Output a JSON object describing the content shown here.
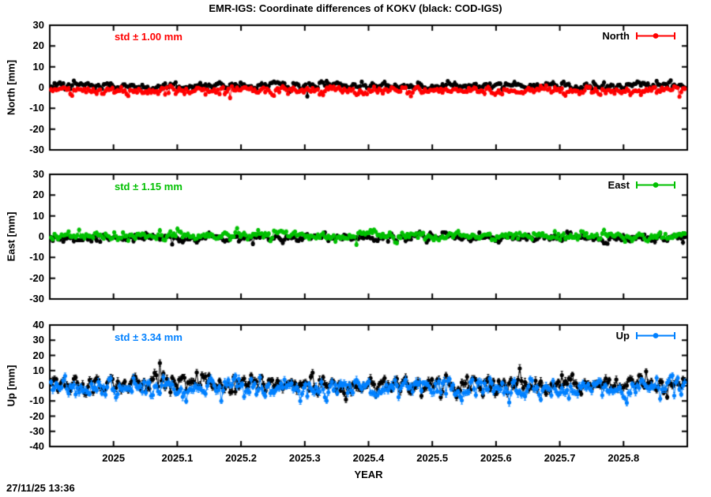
{
  "title": "EMR-IGS: Coordinate differences of KOKV (black: COD-IGS)",
  "xlabel": "YEAR",
  "timestamp": "27/11/25 13:36",
  "palette": {
    "background": "#ffffff",
    "frame": "#000000",
    "black_series": "#000000",
    "north_red": "#ff0000",
    "east_green": "#00c000",
    "up_blue": "#0080ff"
  },
  "x_axis": {
    "lim": [
      2024.9,
      2025.9
    ],
    "tick_values": [
      2025,
      2025.1,
      2025.2,
      2025.3,
      2025.4,
      2025.5,
      2025.6,
      2025.7,
      2025.8
    ],
    "tick_labels": [
      "2025",
      "2025.1",
      "2025.2",
      "2025.3",
      "2025.4",
      "2025.5",
      "2025.6",
      "2025.7",
      "2025.8"
    ]
  },
  "t_range": [
    2024.902,
    2025.896
  ],
  "points_per_series": 362,
  "chart_data": [
    {
      "type": "scatter",
      "id": "north",
      "ylabel": "North [mm]",
      "ylim": [
        -30,
        30
      ],
      "ytick_values": [
        30,
        20,
        10,
        0,
        -10,
        -20,
        -30
      ],
      "ytick_labels": [
        "30",
        "20",
        "10",
        "0",
        "-10",
        "-20",
        "-30"
      ],
      "std_label": "std ± 1.00 mm",
      "legend_label": "North",
      "accent": "#ff0000",
      "series": [
        {
          "name": "COD-IGS",
          "color": "#000000",
          "mean_mm": 1.0,
          "std_mm": 1.0,
          "errorbar_mm": 0.8,
          "seed": 101,
          "outliers": [
            {
              "t": 2025.305,
              "v": -4.2
            }
          ]
        },
        {
          "name": "EMR-IGS",
          "color": "#ff0000",
          "mean_mm": -1.4,
          "std_mm": 1.0,
          "errorbar_mm": 0.8,
          "seed": 102,
          "outliers": [
            {
              "t": 2025.182,
              "v": -4.9
            }
          ]
        }
      ]
    },
    {
      "type": "scatter",
      "id": "east",
      "ylabel": "East [mm]",
      "ylim": [
        -30,
        30
      ],
      "ytick_values": [
        30,
        20,
        10,
        0,
        -10,
        -20,
        -30
      ],
      "ytick_labels": [
        "30",
        "20",
        "10",
        "0",
        "-10",
        "-20",
        "-30"
      ],
      "std_label": "std ± 1.15 mm",
      "legend_label": "East",
      "accent": "#00c000",
      "series": [
        {
          "name": "COD-IGS",
          "color": "#000000",
          "mean_mm": -0.4,
          "std_mm": 1.0,
          "errorbar_mm": 0.8,
          "seed": 201,
          "outliers": []
        },
        {
          "name": "EMR-IGS",
          "color": "#00c000",
          "mean_mm": 0.7,
          "std_mm": 1.15,
          "errorbar_mm": 0.8,
          "seed": 202,
          "outliers": [
            {
              "t": 2025.38,
              "v": -3.8
            }
          ]
        }
      ]
    },
    {
      "type": "scatter",
      "id": "up",
      "ylabel": "Up [mm]",
      "ylim": [
        -40,
        40
      ],
      "ytick_values": [
        40,
        30,
        20,
        10,
        0,
        -10,
        -20,
        -30,
        -40
      ],
      "ytick_labels": [
        "40",
        "30",
        "20",
        "10",
        "0",
        "-10",
        "-20",
        "-30",
        "-40"
      ],
      "std_label": "std ± 3.34 mm",
      "legend_label": "Up",
      "accent": "#0080ff",
      "series": [
        {
          "name": "COD-IGS",
          "color": "#000000",
          "mean_mm": 0.8,
          "std_mm": 3.2,
          "errorbar_mm": 2.0,
          "seed": 301,
          "outliers": [
            {
              "t": 2025.074,
              "v": 15.0
            }
          ]
        },
        {
          "name": "EMR-IGS",
          "color": "#0080ff",
          "mean_mm": -1.5,
          "std_mm": 3.34,
          "errorbar_mm": 2.0,
          "seed": 302,
          "outliers": [
            {
              "t": 2025.17,
              "v": -10.0
            },
            {
              "t": 2025.62,
              "v": -11.0
            }
          ]
        }
      ]
    }
  ]
}
